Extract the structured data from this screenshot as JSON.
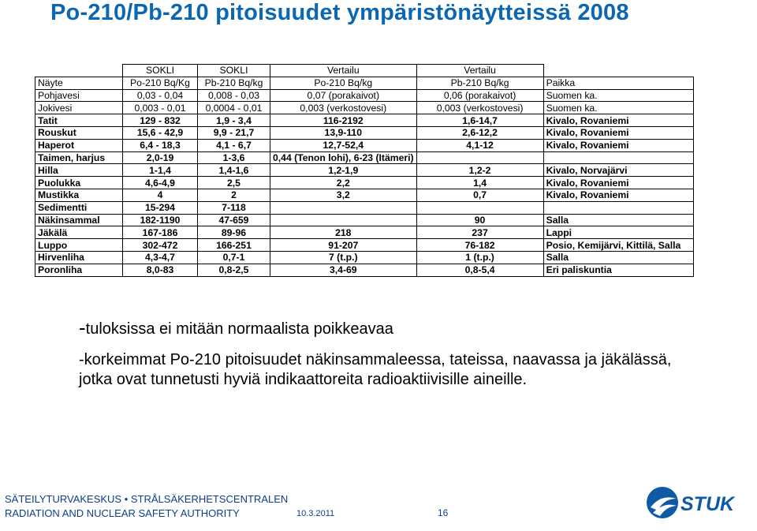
{
  "title": "Po-210/Pb-210 pitoisuudet ympäristönäytteissä 2008",
  "table": {
    "header_top": [
      "",
      "SOKLI",
      "SOKLI",
      "Vertailu",
      "Vertailu",
      ""
    ],
    "header": [
      "Näyte",
      "Po-210 Bq/Kg",
      "Pb-210 Bq/kg",
      "Po-210 Bq/kg",
      "Pb-210 Bq/kg",
      "Paikka"
    ],
    "rows_plain": [
      [
        "Pohjavesi",
        "0,03 - 0,04",
        "0,008 - 0,03",
        "0,07 (porakaivot)",
        "0,06 (porakaivot)",
        "Suomen ka."
      ],
      [
        "Jokivesi",
        "0,003 - 0,01",
        "0,0004 - 0,01",
        "0,003 (verkostovesi)",
        "0,003 (verkostovesi)",
        "Suomen ka."
      ]
    ],
    "rows_bold": [
      [
        "Tatit",
        "129 - 832",
        "1,9 - 3,4",
        "116-2192",
        "1,6-14,7",
        "Kivalo, Rovaniemi"
      ],
      [
        "Rouskut",
        "15,6 - 42,9",
        "9,9 - 21,7",
        "13,9-110",
        "2,6-12,2",
        "Kivalo, Rovaniemi"
      ],
      [
        "Haperot",
        "6,4 - 18,3",
        "4,1 - 6,7",
        "12,7-52,4",
        "4,1-12",
        "Kivalo, Rovaniemi"
      ],
      [
        "Taimen, harjus",
        "2,0-19",
        "1-3,6",
        "0,44 (Tenon lohi), 6-23 (Itämeri)",
        "",
        ""
      ],
      [
        "Hilla",
        "1-1,4",
        "1,4-1,6",
        "1,2-1,9",
        "1,2-2",
        "Kivalo, Norvajärvi"
      ],
      [
        "Puolukka",
        "4,6-4,9",
        "2,5",
        "2,2",
        "1,4",
        "Kivalo, Rovaniemi"
      ],
      [
        "Mustikka",
        "4",
        "2",
        "3,2",
        "0,7",
        "Kivalo, Rovaniemi"
      ],
      [
        "Sedimentti",
        "15-294",
        "7-118",
        "",
        "",
        ""
      ],
      [
        "Näkinsammal",
        "182-1190",
        "47-659",
        "",
        "90",
        "Salla"
      ],
      [
        "Jäkälä",
        "167-186",
        "89-96",
        "218",
        "237",
        "Lappi"
      ],
      [
        "Luppo",
        "302-472",
        "166-251",
        "91-207",
        "76-182",
        "Posio, Kemijärvi, Kittilä, Salla"
      ],
      [
        "Hirvenliha",
        "4,3-4,7",
        "0,7-1",
        "7 (t.p.)",
        "1 (t.p.)",
        "Salla"
      ],
      [
        "Poronliha",
        "8,0-83",
        "0,8-2,5",
        "3,4-69",
        "0,8-5,4",
        "Eri paliskuntia"
      ]
    ]
  },
  "notes": {
    "note1_dash": "-",
    "note1_text": "tuloksissa ei mitään normaalista poikkeavaa",
    "note2": "-korkeimmat Po-210 pitoisuudet näkinsammaleessa, tateissa, naavassa ja jäkälässä, jotka ovat tunnetusti hyviä indikaattoreita radioaktiivisille aineille."
  },
  "footer": {
    "org": "SÄTEILYTURVAKESKUS • STRÅLSÄKERHETSCENTRALEN",
    "authority": "RADIATION AND NUCLEAR SAFETY AUTHORITY",
    "date": "10.3.2011",
    "page": "16",
    "logo_text": "STUK",
    "logo_color": "#0e5aa7"
  },
  "colors": {
    "title": "#0b67b2",
    "footer_text": "#0e3e8a"
  }
}
